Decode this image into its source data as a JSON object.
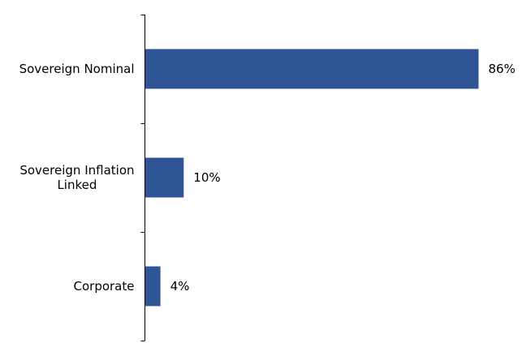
{
  "chart_data": {
    "type": "bar",
    "orientation": "horizontal",
    "categories": [
      [
        "Sovereign Nominal"
      ],
      [
        "Sovereign Inflation",
        "Linked"
      ],
      [
        "Corporate"
      ]
    ],
    "values": [
      86,
      10,
      4
    ],
    "data_labels": [
      "86%",
      "10%",
      "4%"
    ],
    "xlim": [
      0,
      86
    ],
    "title": "",
    "xlabel": "",
    "ylabel": "",
    "grid": false,
    "legend": "none",
    "colors": {
      "bar": "#2f5597",
      "axis": "#000000",
      "text": "#000000"
    }
  }
}
